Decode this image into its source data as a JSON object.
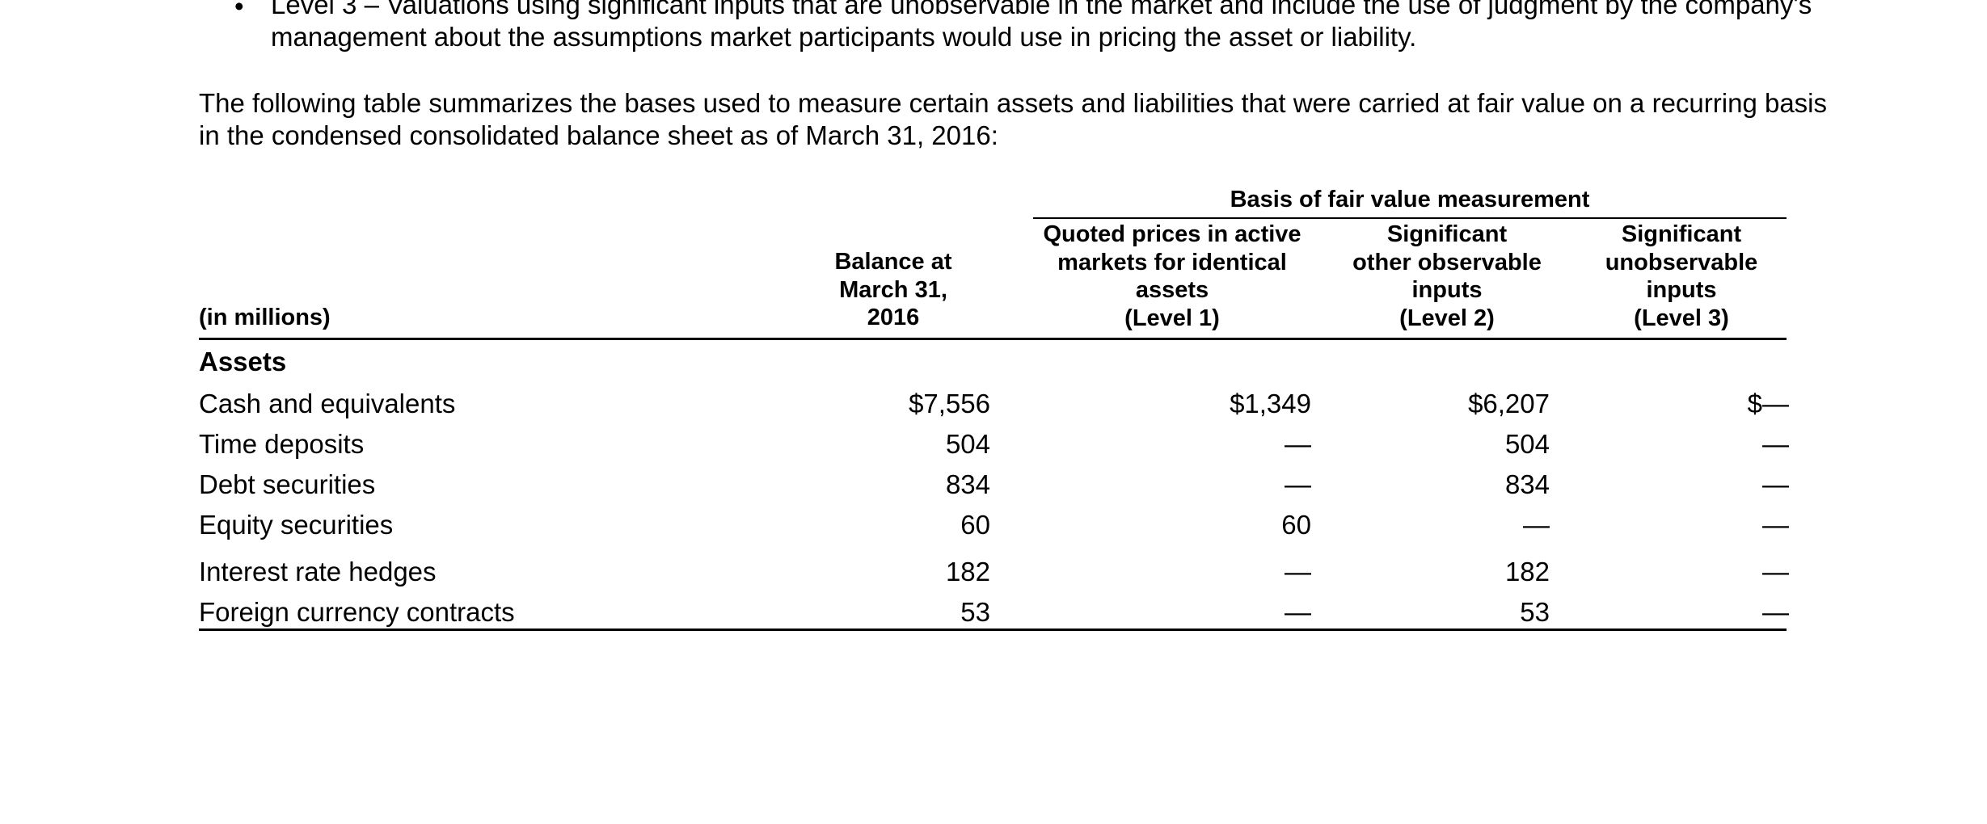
{
  "bullet": {
    "symbol": "•",
    "text": "Level 3 – Valuations using significant inputs that are unobservable in the market and include the use of judgment by the company's management about the assumptions market participants would use in pricing the asset or liability."
  },
  "intro": "The following table summarizes the bases used to measure certain assets and liabilities that were carried at fair value on a recurring basis in the condensed consolidated balance sheet as of March 31, 2016:",
  "table": {
    "group_header": "Basis of fair value measurement",
    "headers": {
      "label": "(in millions)",
      "balance": [
        "Balance at",
        "March 31,",
        "2016"
      ],
      "level1": [
        "Quoted prices in active",
        "markets for identical",
        "assets",
        "(Level 1)"
      ],
      "level2": [
        "Significant",
        "other observable",
        "inputs",
        "(Level 2)"
      ],
      "level3": [
        "Significant",
        "unobservable",
        "inputs",
        "(Level 3)"
      ]
    },
    "section": "Assets",
    "rows": [
      {
        "label": "Cash and equivalents",
        "balance": "$7,556",
        "level1": "$1,349",
        "level2": "$6,207",
        "level3": "$—"
      },
      {
        "label": "Time deposits",
        "balance": "504",
        "level1": "—",
        "level2": "504",
        "level3": "—"
      },
      {
        "label": "Debt securities",
        "balance": "834",
        "level1": "—",
        "level2": "834",
        "level3": "—"
      },
      {
        "label": "Equity securities",
        "balance": "60",
        "level1": "60",
        "level2": "—",
        "level3": "—"
      },
      {
        "label": "Interest rate hedges",
        "balance": "182",
        "level1": "—",
        "level2": "182",
        "level3": "—"
      },
      {
        "label": "Foreign currency contracts",
        "balance": "53",
        "level1": "—",
        "level2": "53",
        "level3": "—"
      }
    ]
  }
}
